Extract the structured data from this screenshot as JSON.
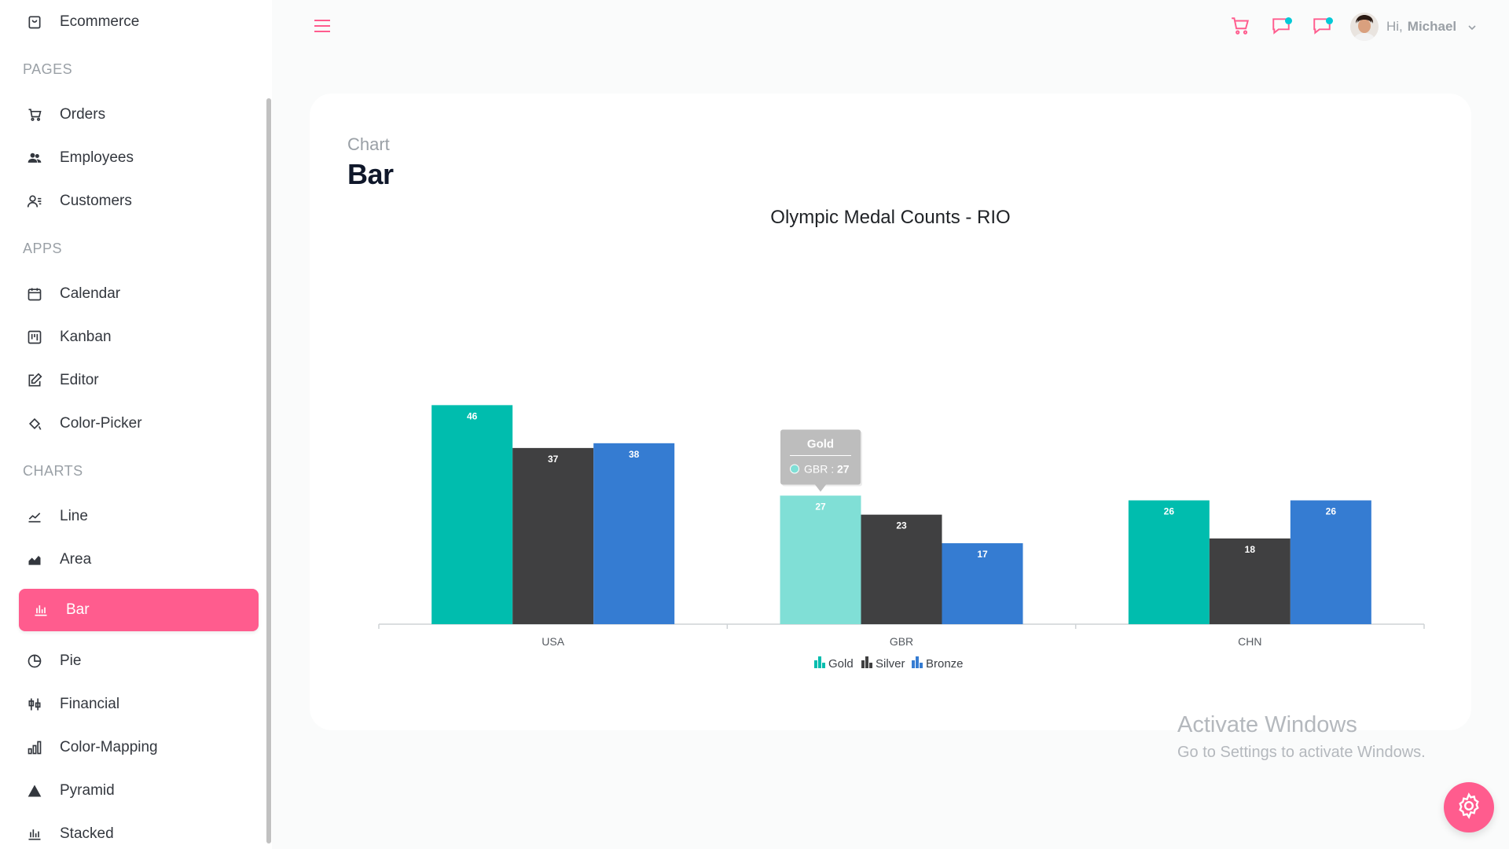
{
  "sidebar": {
    "top_item": {
      "label": "Ecommerce",
      "icon": "shopping-bag-icon"
    },
    "sections": {
      "pages": "PAGES",
      "apps": "APPS",
      "charts": "CHARTS"
    },
    "pages_items": [
      {
        "label": "Orders",
        "icon": "cart-icon"
      },
      {
        "label": "Employees",
        "icon": "employees-icon"
      },
      {
        "label": "Customers",
        "icon": "customers-icon"
      }
    ],
    "apps_items": [
      {
        "label": "Calendar",
        "icon": "calendar-icon"
      },
      {
        "label": "Kanban",
        "icon": "kanban-icon"
      },
      {
        "label": "Editor",
        "icon": "editor-icon"
      },
      {
        "label": "Color-Picker",
        "icon": "color-picker-icon"
      }
    ],
    "charts_items": [
      {
        "label": "Line",
        "icon": "line-chart-icon"
      },
      {
        "label": "Area",
        "icon": "area-chart-icon"
      },
      {
        "label": "Bar",
        "icon": "bar-chart-icon",
        "active": true
      },
      {
        "label": "Pie",
        "icon": "pie-chart-icon"
      },
      {
        "label": "Financial",
        "icon": "financial-icon"
      },
      {
        "label": "Color-Mapping",
        "icon": "color-mapping-icon"
      },
      {
        "label": "Pyramid",
        "icon": "pyramid-icon"
      },
      {
        "label": "Stacked",
        "icon": "stacked-icon"
      }
    ]
  },
  "topbar": {
    "greeting": "Hi,",
    "username": "Michael"
  },
  "header": {
    "category": "Chart",
    "title": "Bar"
  },
  "watermark": {
    "title": "Activate Windows",
    "subtitle": "Go to Settings to activate Windows."
  },
  "colors": {
    "accent": "#ff5c8e",
    "gold": "#00bdae",
    "gold_highlight": "#80dfd6",
    "silver": "#404041",
    "bronze": "#357cd2",
    "notif": "#03c9d7"
  },
  "chart_data": {
    "type": "bar",
    "title": "Olympic Medal Counts - RIO",
    "categories": [
      "USA",
      "GBR",
      "CHN"
    ],
    "series": [
      {
        "name": "Gold",
        "values": [
          46,
          27,
          26
        ]
      },
      {
        "name": "Silver",
        "values": [
          37,
          23,
          18
        ]
      },
      {
        "name": "Bronze",
        "values": [
          38,
          17,
          26
        ]
      }
    ],
    "ylim": [
      0,
      70
    ],
    "legend": "bottom-center",
    "grid": false,
    "tooltip": {
      "series": "Gold",
      "category": "GBR",
      "value": 27
    }
  }
}
